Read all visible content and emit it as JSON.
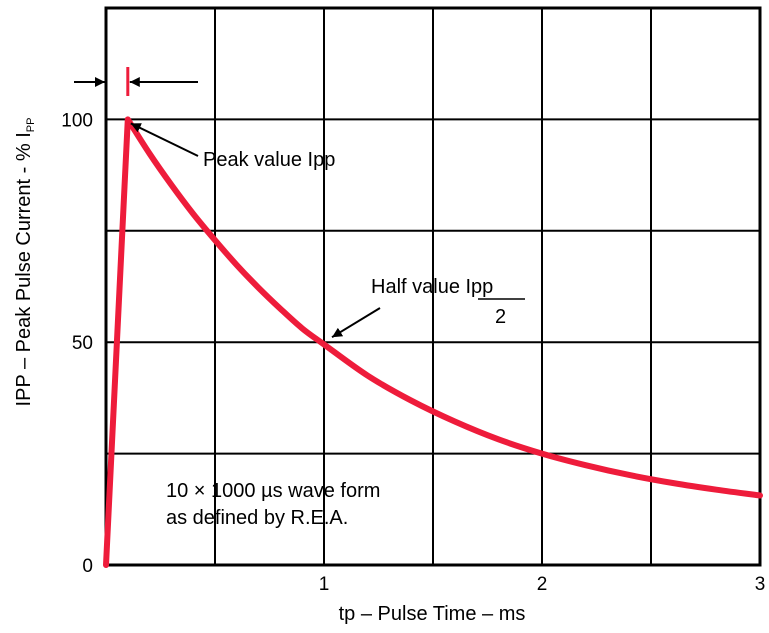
{
  "chart_data": {
    "type": "line",
    "xlabel": "tp – Pulse Time – ms",
    "ylabel_main": "IPP – Peak Pulse Current - % I",
    "ylabel_sub": "PP",
    "xlim": [
      0,
      3
    ],
    "ylim": [
      0,
      125
    ],
    "x_ticks": [
      0,
      0.5,
      1,
      1.5,
      2,
      2.5,
      3
    ],
    "x_tick_labels": [
      "",
      "",
      "1",
      "",
      "2",
      "",
      "3"
    ],
    "y_ticks": [
      0,
      25,
      50,
      75,
      100
    ],
    "y_tick_labels": [
      "0",
      "",
      "50",
      "",
      "100"
    ],
    "grid": true,
    "series": [
      {
        "color": "#ee1c3b",
        "x": [
          0,
          0.1,
          0.2,
          0.3,
          0.4,
          0.5,
          0.6,
          0.7,
          0.8,
          0.9,
          1.0,
          1.2,
          1.4,
          1.6,
          1.8,
          2.0,
          2.2,
          2.4,
          2.6,
          2.8,
          3.0
        ],
        "y": [
          0,
          100,
          92.3,
          85.3,
          78.8,
          72.9,
          67.3,
          62.2,
          57.5,
          53.1,
          49.5,
          42.5,
          36.9,
          32.2,
          28.2,
          25.0,
          22.4,
          20.2,
          18.4,
          16.9,
          15.6
        ]
      }
    ],
    "rise_marker": {
      "x": 0.1,
      "color": "#ee1c3b"
    },
    "annotations": {
      "peak": {
        "text": "Peak value Ipp",
        "x": 0.1,
        "y": 100
      },
      "half": {
        "text": "Half  value Ipp",
        "denominator": "2",
        "x": 1.0,
        "y": 50
      },
      "waveform_line1": "10 × 1000 µs wave form",
      "waveform_line2": "as defined by R.E.A."
    }
  }
}
